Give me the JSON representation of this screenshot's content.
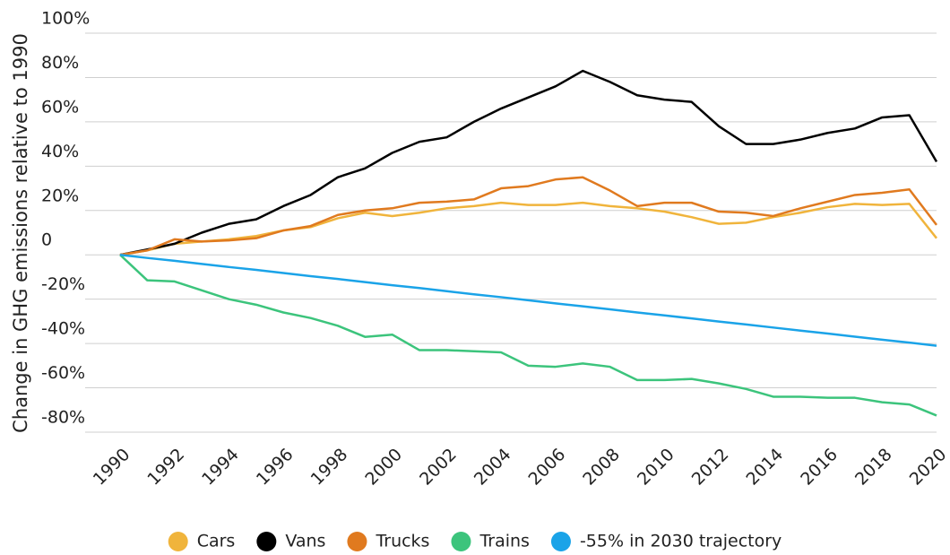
{
  "chart_data": {
    "type": "line",
    "y_label": "Change in GHG emissions relative to 1990",
    "x": [
      1990,
      1991,
      1992,
      1993,
      1994,
      1995,
      1996,
      1997,
      1998,
      1999,
      2000,
      2001,
      2002,
      2003,
      2004,
      2005,
      2006,
      2007,
      2008,
      2009,
      2010,
      2011,
      2012,
      2013,
      2014,
      2015,
      2016,
      2017,
      2018,
      2019,
      2020
    ],
    "xlim": [
      1990,
      2020
    ],
    "xticks": [
      1990,
      1992,
      1994,
      1996,
      1998,
      2000,
      2002,
      2004,
      2006,
      2008,
      2010,
      2012,
      2014,
      2016,
      2018,
      2020
    ],
    "ylim": [
      -80,
      100
    ],
    "yticks": [
      {
        "value": -80,
        "label": "-80%"
      },
      {
        "value": -60,
        "label": "-60%"
      },
      {
        "value": -40,
        "label": "-40%"
      },
      {
        "value": -20,
        "label": "-20%"
      },
      0,
      {
        "value": 20,
        "label": "20%"
      },
      {
        "value": 40,
        "label": "40%"
      },
      {
        "value": 60,
        "label": "60%"
      },
      {
        "value": 80,
        "label": "80%"
      },
      {
        "value": 100,
        "label": "100%"
      }
    ],
    "grid": true,
    "legend": "bottom",
    "series": [
      {
        "name": "Cars",
        "color": "#f0b43c",
        "values": [
          0,
          2,
          5,
          6,
          7,
          8.5,
          11,
          12.5,
          16.5,
          19,
          17.5,
          19,
          21,
          22,
          23.5,
          22.5,
          22.5,
          23.5,
          22,
          21,
          19.5,
          17,
          14,
          14.5,
          17,
          19,
          21.5,
          23,
          22.5,
          23,
          7.5
        ]
      },
      {
        "name": "Vans",
        "color": "#000000",
        "values": [
          0,
          2.4,
          5,
          10,
          14,
          16,
          22,
          27,
          35,
          39,
          46,
          51,
          53,
          60,
          66,
          71,
          76,
          83,
          78,
          72,
          70,
          69,
          58,
          50,
          50,
          52,
          55,
          57,
          62,
          63,
          42
        ]
      },
      {
        "name": "Trucks",
        "color": "#e07a1f",
        "values": [
          0,
          2,
          7,
          6,
          6.5,
          7.5,
          11,
          13,
          18,
          20,
          21,
          23.5,
          24,
          25,
          30,
          31,
          34,
          35,
          29,
          22,
          23.5,
          23.5,
          19.5,
          19,
          17.5,
          21,
          24,
          27,
          28,
          29.5,
          13.5
        ]
      },
      {
        "name": "Trains",
        "color": "#3cc47c",
        "values": [
          0,
          -11.5,
          -12,
          -16,
          -20,
          -22.5,
          -26,
          -28.5,
          -32,
          -37,
          -36,
          -43,
          -43,
          -43.5,
          -44,
          -50,
          -50.5,
          -49,
          -50.5,
          -56.5,
          -56.5,
          -56,
          -58,
          -60.5,
          -64,
          -64,
          -64.5,
          -64.5,
          -66.5,
          -67.5,
          -72.5
        ]
      },
      {
        "name": "-55% in 2030 trajectory",
        "color": "#1aa3e8",
        "values": [
          0,
          -1.4,
          -2.7,
          -4.1,
          -5.5,
          -6.8,
          -8.2,
          -9.6,
          -10.9,
          -12.3,
          -13.7,
          -15.0,
          -16.4,
          -17.8,
          -19.1,
          -20.5,
          -21.9,
          -23.2,
          -24.6,
          -26.0,
          -27.3,
          -28.7,
          -30.1,
          -31.4,
          -32.8,
          -34.2,
          -35.5,
          -36.9,
          -38.3,
          -39.6,
          -41.0
        ]
      }
    ]
  }
}
